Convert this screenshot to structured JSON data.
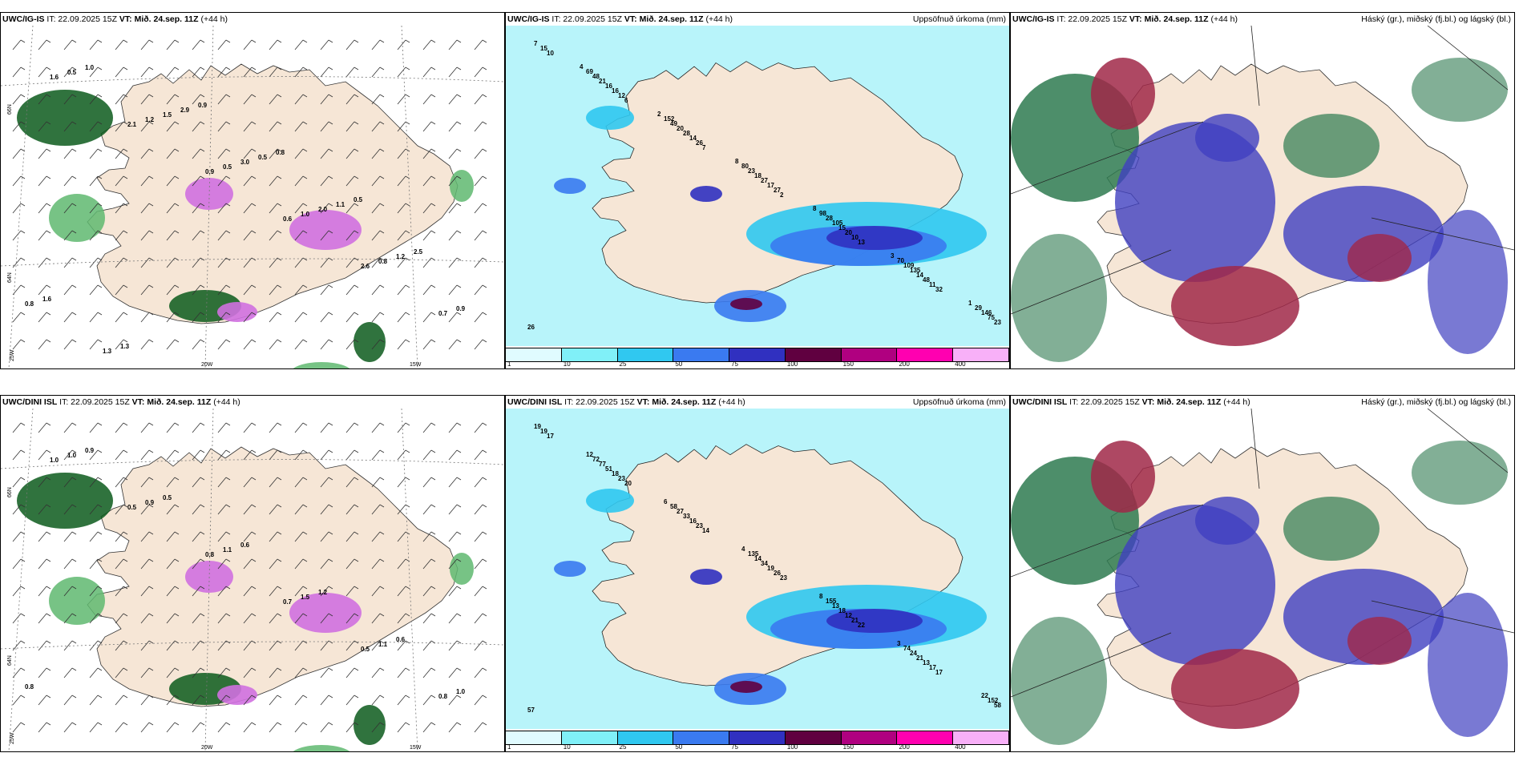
{
  "panels": {
    "p1": {
      "model": "UWC/IG-IS",
      "it": " IT: 22.09.2025 15Z ",
      "vt": "VT: Mið. 24.sep. 11Z",
      "lead": " (+44 h)",
      "right": ""
    },
    "p2": {
      "model": "UWC/IG-IS",
      "it": " IT: 22.09.2025 15Z ",
      "vt": "VT: Mið. 24.sep. 11Z",
      "lead": " (+44 h)",
      "right": "Uppsöfnuð úrkoma (mm)"
    },
    "p3": {
      "model": "UWC/IG-IS",
      "it": " IT: 22.09.2025 15Z ",
      "vt": "VT: Mið. 24.sep. 11Z",
      "lead": " (+44 h)",
      "right": "Háský (gr.), miðský (fj.bl.) og lágský (bl.)"
    },
    "p4": {
      "model": "UWC/DINI ISL",
      "it": " IT: 22.09.2025 15Z ",
      "vt": "VT: Mið. 24.sep. 11Z",
      "lead": " (+44 h)",
      "right": ""
    },
    "p5": {
      "model": "UWC/DINI ISL",
      "it": " IT: 22.09.2025 15Z ",
      "vt": "VT: Mið. 24.sep. 11Z",
      "lead": " (+44 h)",
      "right": "Uppsöfnuð úrkoma (mm)"
    },
    "p6": {
      "model": "UWC/DINI ISL",
      "it": " IT: 22.09.2025 15Z ",
      "vt": "VT: Mið. 24.sep. 11Z",
      "lead": " (+44 h)",
      "right": "Háský (gr.), miðský (fj.bl.) og lágský (bl.)"
    }
  },
  "grid_labels": {
    "lat66": "66N",
    "lat64": "64N",
    "lon20": "20W",
    "lon15": "15W",
    "lon25": "25W"
  },
  "colorbar": {
    "ticks": [
      "1",
      "10",
      "25",
      "50",
      "75",
      "100",
      "150",
      "200",
      "400"
    ],
    "colors": [
      "#e0fbff",
      "#80f0f8",
      "#30c8f0",
      "#3a7af0",
      "#3030c0",
      "#600040",
      "#b00080",
      "#ff00b0",
      "#f8b0f8"
    ]
  },
  "colors": {
    "land": "#f6e6d6",
    "sea_precip": "#b8f4fa",
    "wind_green": "#0c5a1c",
    "precip_magenta": "#d070e0",
    "cloud_high": "#2e7a50",
    "cloud_mid": "#a02848",
    "cloud_low": "#4040c0"
  },
  "precip_labels_top": [
    "10",
    "6",
    "7",
    "2",
    "13",
    "32",
    "15",
    "12",
    "26",
    "27",
    "10",
    "11",
    "7",
    "16",
    "14",
    "17",
    "20",
    "48",
    "26",
    "16",
    "28",
    "27",
    "15",
    "14",
    "23",
    "21",
    "20",
    "18",
    "105",
    "135",
    "75",
    "48",
    "49",
    "23",
    "28",
    "109",
    "146",
    "69",
    "152",
    "80",
    "98",
    "70",
    "29",
    "4",
    "2",
    "8",
    "8",
    "3",
    "1"
  ],
  "precip_labels_bottom": [
    "17",
    "20",
    "14",
    "23",
    "22",
    "17",
    "19",
    "23",
    "23",
    "26",
    "21",
    "17",
    "19",
    "18",
    "16",
    "19",
    "12",
    "13",
    "57",
    "51",
    "33",
    "34",
    "18",
    "21",
    "58",
    "77",
    "27",
    "14",
    "13",
    "24",
    "152",
    "72",
    "58",
    "135",
    "155",
    "74",
    "22",
    "12",
    "6",
    "4",
    "8",
    "3"
  ],
  "wind_labels_top": [
    "1.6",
    "2.1",
    "0.9",
    "0.6",
    "2.6",
    "0.7",
    "0.5",
    "1.2",
    "0.5",
    "1.0",
    "0.8",
    "0.9",
    "1.0",
    "1.5",
    "3.0",
    "2.0",
    "1.2",
    "0.8",
    "1.3",
    "2.9",
    "0.5",
    "1.1",
    "2.5",
    "1.6",
    "1.3",
    "0.9",
    "0.8",
    "0.5"
  ],
  "wind_labels_bottom": [
    "1.0",
    "0.5",
    "0.8",
    "0.7",
    "0.5",
    "0.8",
    "1.0",
    "0.9",
    "1.1",
    "1.5",
    "1.1",
    "1.0",
    "0.9",
    "0.5",
    "0.6",
    "1.2",
    "0.6",
    "0.8"
  ]
}
